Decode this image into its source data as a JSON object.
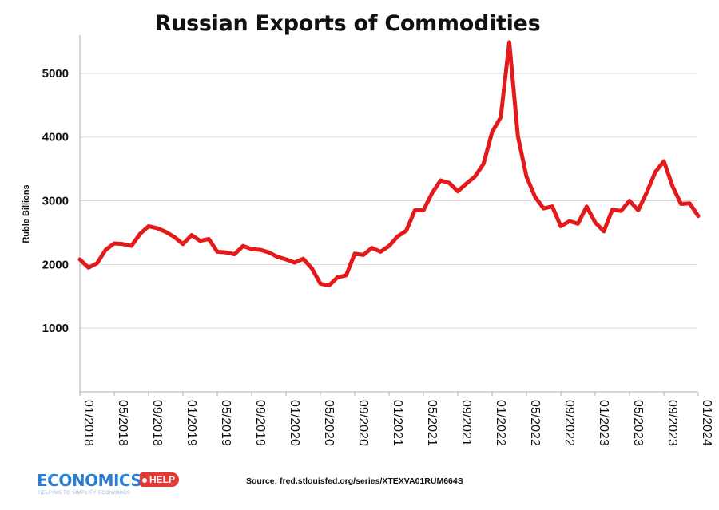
{
  "chart_data": {
    "type": "line",
    "title": "Russian Exports of Commodities",
    "xlabel": "",
    "ylabel": "Ruble Billions",
    "ylim": [
      0,
      5600
    ],
    "yticks": [
      1000,
      2000,
      3000,
      4000,
      5000
    ],
    "grid": "horizontal",
    "xtick_labels": [
      "01/2018",
      "05/2018",
      "09/2018",
      "01/2019",
      "05/2019",
      "09/2019",
      "01/2020",
      "05/2020",
      "09/2020",
      "01/2021",
      "05/2021",
      "09/2021",
      "01/2022",
      "05/2022",
      "09/2022",
      "01/2023",
      "05/2023",
      "09/2023",
      "01/2024"
    ],
    "series": [
      {
        "name": "Russian Exports of Commodities",
        "color": "#e41a1a",
        "x": [
          "2018-01",
          "2018-02",
          "2018-03",
          "2018-04",
          "2018-05",
          "2018-06",
          "2018-07",
          "2018-08",
          "2018-09",
          "2018-10",
          "2018-11",
          "2018-12",
          "2019-01",
          "2019-02",
          "2019-03",
          "2019-04",
          "2019-05",
          "2019-06",
          "2019-07",
          "2019-08",
          "2019-09",
          "2019-10",
          "2019-11",
          "2019-12",
          "2020-01",
          "2020-02",
          "2020-03",
          "2020-04",
          "2020-05",
          "2020-06",
          "2020-07",
          "2020-08",
          "2020-09",
          "2020-10",
          "2020-11",
          "2020-12",
          "2021-01",
          "2021-02",
          "2021-03",
          "2021-04",
          "2021-05",
          "2021-06",
          "2021-07",
          "2021-08",
          "2021-09",
          "2021-10",
          "2021-11",
          "2021-12",
          "2022-01",
          "2022-02",
          "2022-03",
          "2022-04",
          "2022-05",
          "2022-06",
          "2022-07",
          "2022-08",
          "2022-09",
          "2022-10",
          "2022-11",
          "2022-12",
          "2023-01",
          "2023-02",
          "2023-03",
          "2023-04",
          "2023-05",
          "2023-06",
          "2023-07",
          "2023-08",
          "2023-09",
          "2023-10",
          "2023-11",
          "2023-12",
          "2024-01"
        ],
        "values": [
          2080,
          1950,
          2020,
          2230,
          2330,
          2320,
          2290,
          2480,
          2600,
          2570,
          2510,
          2430,
          2320,
          2460,
          2370,
          2400,
          2200,
          2190,
          2160,
          2290,
          2240,
          2230,
          2190,
          2120,
          2080,
          2030,
          2090,
          1940,
          1700,
          1670,
          1800,
          1830,
          2170,
          2150,
          2260,
          2200,
          2290,
          2440,
          2530,
          2850,
          2850,
          3120,
          3320,
          3280,
          3150,
          3270,
          3380,
          3580,
          4080,
          4310,
          5490,
          4010,
          3380,
          3060,
          2880,
          2910,
          2600,
          2680,
          2640,
          2910,
          2660,
          2520,
          2860,
          2840,
          3000,
          2850,
          3130,
          3450,
          3620,
          3230,
          2950,
          2960,
          2760
        ]
      }
    ]
  },
  "source": "Source: fred.stlouisfed.org/series/XTEXVA01RUM664S",
  "logo": {
    "word": "ECONOMICS",
    "badge": "HELP",
    "tagline": "HELPING TO SIMPLIFY ECONOMICS"
  }
}
